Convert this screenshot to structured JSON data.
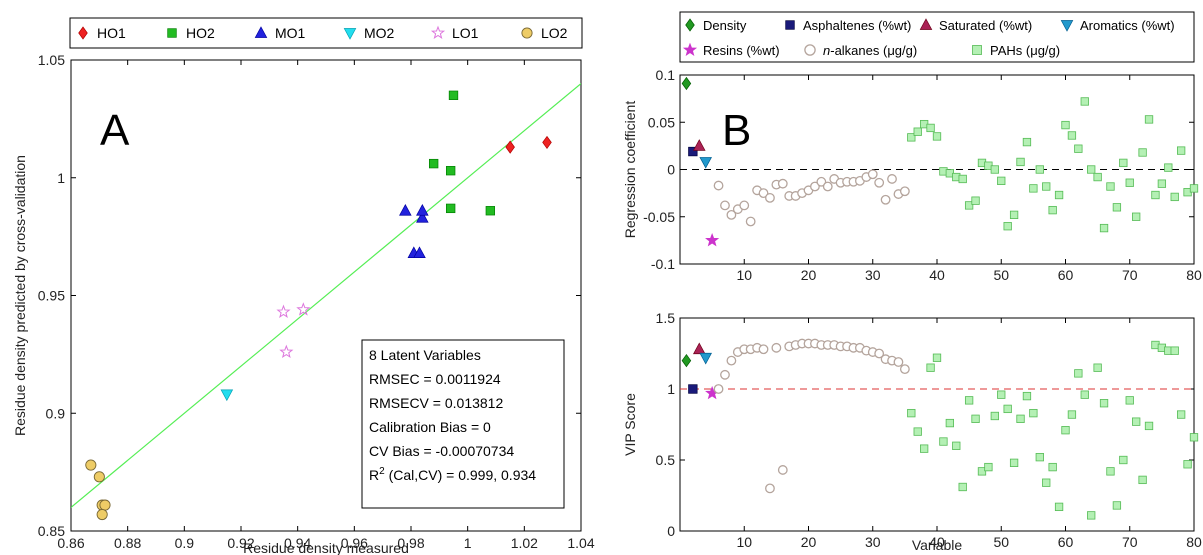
{
  "chart_data": [
    {
      "type": "scatter",
      "panel_letter": "A",
      "xlabel": "Residue density measured",
      "ylabel": "Residue density predicted by cross-validation",
      "xlim": [
        0.86,
        1.04
      ],
      "ylim": [
        0.85,
        1.05
      ],
      "xticks": [
        "0.86",
        "0.88",
        "0.9",
        "0.92",
        "0.94",
        "0.96",
        "0.98",
        "1",
        "1.02",
        "1.04"
      ],
      "yticks": [
        "0.85",
        "0.9",
        "0.95",
        "1",
        "1.05"
      ],
      "grid": false,
      "legend_position": "top",
      "fit_line": {
        "color": "#55ee55",
        "x": [
          0.86,
          1.04
        ],
        "y": [
          0.86,
          1.04
        ]
      },
      "series": [
        {
          "name": "HO1",
          "marker": "diamond",
          "color": "#ee2222",
          "x": [
            1.015,
            1.028
          ],
          "y": [
            1.013,
            1.015
          ]
        },
        {
          "name": "HO2",
          "marker": "square",
          "color": "#22bb22",
          "x": [
            0.988,
            0.994,
            0.995,
            0.994,
            1.008
          ],
          "y": [
            1.006,
            1.003,
            1.035,
            0.987,
            0.986
          ]
        },
        {
          "name": "MO1",
          "marker": "triangle-up",
          "color": "#2222dd",
          "x": [
            0.978,
            0.981,
            0.983,
            0.984,
            0.984
          ],
          "y": [
            0.986,
            0.968,
            0.968,
            0.983,
            0.986
          ]
        },
        {
          "name": "MO2",
          "marker": "triangle-down",
          "color": "#22ddee",
          "x": [
            0.915
          ],
          "y": [
            0.908
          ]
        },
        {
          "name": "LO1",
          "marker": "star",
          "color": "#dd77dd",
          "x": [
            0.935,
            0.936,
            0.942
          ],
          "y": [
            0.943,
            0.926,
            0.944
          ]
        },
        {
          "name": "LO2",
          "marker": "circle",
          "color": "#eecc66",
          "x": [
            0.867,
            0.87,
            0.871,
            0.872,
            0.871
          ],
          "y": [
            0.878,
            0.873,
            0.861,
            0.861,
            0.857
          ]
        }
      ],
      "annotation": {
        "lines": [
          "8 Latent Variables",
          "RMSEC = 0.0011924",
          "RMSECV = 0.013812",
          "Calibration Bias = 0",
          "CV Bias = -0.00070734"
        ],
        "r2_prefix": "R",
        "r2_sup": "2",
        "r2_rest": " (Cal,CV) = 0.999, 0.934"
      }
    },
    {
      "type": "scatter",
      "panel_letter": "B",
      "xlabel": "",
      "ylabel": "Regression coefficient",
      "xlim": [
        0,
        80
      ],
      "ylim": [
        -0.1,
        0.1
      ],
      "xticks": [
        "10",
        "20",
        "30",
        "40",
        "50",
        "60",
        "70",
        "80"
      ],
      "yticks": [
        "-0.1",
        "-0.05",
        "0",
        "0.05",
        "0.1"
      ],
      "reference_line": {
        "y": 0,
        "color": "#000000",
        "style": "dashed"
      },
      "grid": false,
      "legend_position": "top",
      "series": [
        {
          "name": "Density",
          "marker": "diamond",
          "color": "#229922",
          "x": [
            1
          ],
          "y": [
            0.091
          ]
        },
        {
          "name": "Asphaltenes (%wt)",
          "marker": "square",
          "color": "#1a1a7a",
          "x": [
            2
          ],
          "y": [
            0.019
          ]
        },
        {
          "name": "Saturated (%wt)",
          "marker": "triangle-up",
          "color": "#aa2255",
          "x": [
            3
          ],
          "y": [
            0.025
          ]
        },
        {
          "name": "Aromatics (%wt)",
          "marker": "triangle-down",
          "color": "#2299cc",
          "x": [
            4
          ],
          "y": [
            0.008
          ]
        },
        {
          "name": "Resins (%wt)",
          "marker": "star",
          "color": "#cc33cc",
          "x": [
            5
          ],
          "y": [
            -0.075
          ]
        },
        {
          "name": "n-alkanes (μg/g)",
          "marker": "circle-open",
          "color": "#b4a49c",
          "x": [
            6,
            7,
            8,
            9,
            10,
            11,
            12,
            13,
            14,
            15,
            16,
            17,
            18,
            19,
            20,
            21,
            22,
            23,
            24,
            25,
            26,
            27,
            28,
            29,
            30,
            31,
            32,
            33,
            34,
            35
          ],
          "y": [
            -0.017,
            -0.038,
            -0.048,
            -0.042,
            -0.038,
            -0.055,
            -0.022,
            -0.025,
            -0.03,
            -0.016,
            -0.015,
            -0.028,
            -0.028,
            -0.025,
            -0.022,
            -0.018,
            -0.013,
            -0.018,
            -0.01,
            -0.014,
            -0.013,
            -0.013,
            -0.012,
            -0.008,
            -0.005,
            -0.014,
            -0.032,
            -0.01,
            -0.026,
            -0.023
          ]
        },
        {
          "name": "PAHs (μg/g)",
          "marker": "square-light",
          "color": "#88dd88",
          "x": [
            36,
            37,
            38,
            39,
            40,
            41,
            42,
            43,
            44,
            45,
            46,
            47,
            48,
            49,
            50,
            51,
            52,
            53,
            54,
            55,
            56,
            57,
            58,
            59,
            60,
            61,
            62,
            63,
            64,
            65,
            66,
            67,
            68,
            69,
            70,
            71,
            72,
            73,
            74,
            75,
            76,
            77,
            78,
            79,
            80
          ],
          "y": [
            0.034,
            0.04,
            0.048,
            0.044,
            0.035,
            -0.002,
            -0.004,
            -0.008,
            -0.01,
            -0.038,
            -0.033,
            0.007,
            0.004,
            0.0,
            -0.012,
            -0.06,
            -0.048,
            0.008,
            0.029,
            -0.02,
            0.0,
            -0.018,
            -0.043,
            -0.027,
            0.047,
            0.036,
            0.022,
            0.072,
            0.0,
            -0.008,
            -0.062,
            -0.018,
            -0.04,
            0.007,
            -0.014,
            -0.05,
            0.018,
            0.053,
            -0.027,
            -0.015,
            0.002,
            -0.029,
            0.02,
            -0.024,
            -0.02
          ]
        }
      ]
    },
    {
      "type": "scatter",
      "xlabel": "Variable",
      "ylabel": "VIP Score",
      "xlim": [
        0,
        80
      ],
      "ylim": [
        0,
        1.5
      ],
      "xticks": [
        "10",
        "20",
        "30",
        "40",
        "50",
        "60",
        "70",
        "80"
      ],
      "yticks": [
        "0",
        "0.5",
        "1",
        "1.5"
      ],
      "reference_lines": [
        {
          "y": 1,
          "color": "#dd3333",
          "style": "dashed"
        },
        {
          "y": 0,
          "color": "#000000",
          "style": "dashed"
        }
      ],
      "grid": false,
      "series": [
        {
          "name": "Density",
          "marker": "diamond",
          "color": "#229922",
          "x": [
            1
          ],
          "y": [
            1.2
          ]
        },
        {
          "name": "Asphaltenes (%wt)",
          "marker": "square",
          "color": "#1a1a7a",
          "x": [
            2
          ],
          "y": [
            1.0
          ]
        },
        {
          "name": "Saturated (%wt)",
          "marker": "triangle-up",
          "color": "#aa2255",
          "x": [
            3
          ],
          "y": [
            1.28
          ]
        },
        {
          "name": "Aromatics (%wt)",
          "marker": "triangle-down",
          "color": "#2299cc",
          "x": [
            4
          ],
          "y": [
            1.22
          ]
        },
        {
          "name": "Resins (%wt)",
          "marker": "star",
          "color": "#cc33cc",
          "x": [
            5
          ],
          "y": [
            0.97
          ]
        },
        {
          "name": "n-alkanes (μg/g)",
          "marker": "circle-open",
          "color": "#b4a49c",
          "x": [
            6,
            7,
            8,
            9,
            10,
            11,
            12,
            13,
            14,
            15,
            16,
            17,
            18,
            19,
            20,
            21,
            22,
            23,
            24,
            25,
            26,
            27,
            28,
            29,
            30,
            31,
            32,
            33,
            34,
            35
          ],
          "y": [
            1.0,
            1.1,
            1.2,
            1.26,
            1.28,
            1.28,
            1.29,
            1.28,
            0.3,
            1.29,
            0.43,
            1.3,
            1.31,
            1.32,
            1.32,
            1.32,
            1.31,
            1.31,
            1.31,
            1.3,
            1.3,
            1.29,
            1.29,
            1.27,
            1.26,
            1.25,
            1.21,
            1.2,
            1.19,
            1.14
          ]
        },
        {
          "name": "PAHs (μg/g)",
          "marker": "square-light",
          "color": "#88dd88",
          "x": [
            36,
            37,
            38,
            39,
            40,
            41,
            42,
            43,
            44,
            45,
            46,
            47,
            48,
            49,
            50,
            51,
            52,
            53,
            54,
            55,
            56,
            57,
            58,
            59,
            60,
            61,
            62,
            63,
            64,
            65,
            66,
            67,
            68,
            69,
            70,
            71,
            72,
            73,
            74,
            75,
            76,
            77,
            78,
            79,
            80
          ],
          "y": [
            0.83,
            0.7,
            0.58,
            1.15,
            1.22,
            0.63,
            0.76,
            0.6,
            0.31,
            0.92,
            0.79,
            0.42,
            0.45,
            0.81,
            0.96,
            0.86,
            0.48,
            0.79,
            0.95,
            0.83,
            0.52,
            0.34,
            0.45,
            0.17,
            0.71,
            0.82,
            1.11,
            0.96,
            0.11,
            1.15,
            0.9,
            0.42,
            0.18,
            0.5,
            0.92,
            0.77,
            0.36,
            0.74,
            1.31,
            1.29,
            1.27,
            1.27,
            0.82,
            0.47,
            0.66
          ]
        }
      ]
    }
  ]
}
